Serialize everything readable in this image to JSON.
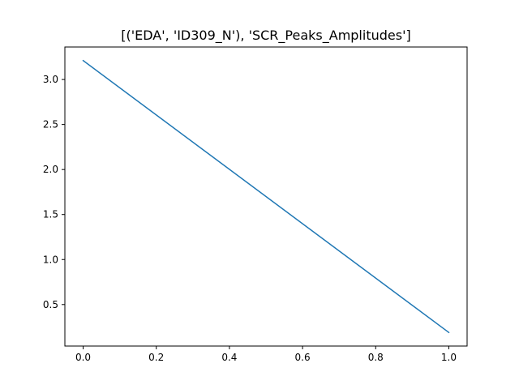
{
  "chart_data": {
    "type": "line",
    "title": "[('EDA', 'ID309_N'), 'SCR_Peaks_Amplitudes']",
    "xlabel": "",
    "ylabel": "",
    "x": [
      0.0,
      1.0
    ],
    "series": [
      {
        "values": [
          3.21,
          0.19
        ],
        "color": "#1f77b4"
      }
    ],
    "xlim": [
      -0.05,
      1.05
    ],
    "ylim": [
      0.039,
      3.361
    ],
    "xticks": [
      0.0,
      0.2,
      0.4,
      0.6,
      0.8,
      1.0
    ],
    "xtick_labels": [
      "0.0",
      "0.2",
      "0.4",
      "0.6",
      "0.8",
      "1.0"
    ],
    "yticks": [
      0.5,
      1.0,
      1.5,
      2.0,
      2.5,
      3.0
    ],
    "ytick_labels": [
      "0.5",
      "1.0",
      "1.5",
      "2.0",
      "2.5",
      "3.0"
    ],
    "grid": false,
    "legend": false
  }
}
